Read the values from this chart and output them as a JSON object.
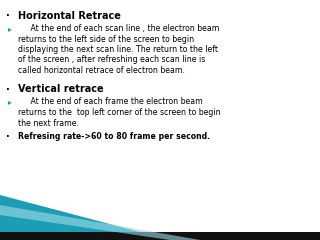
{
  "bg_color": "#ffffff",
  "text_color": "#000000",
  "sections": [
    {
      "title": "Horizontal Retrace",
      "body_lines": [
        "     At the end of each scan line , the electron beam",
        "returns to the left side of the screen to begin",
        "displaying the next scan line. The return to the left",
        "of the screen , after refreshing each scan line is",
        "called horizontal retrace of electron beam."
      ]
    },
    {
      "title": "Vertical retrace",
      "body_lines": [
        "     At the end of each frame the electron beam",
        "returns to the  top left corner of the screen to begin",
        "the next frame."
      ],
      "extra_lines": [
        "Refresing rate->60 to 80 frame per second."
      ]
    }
  ],
  "title_fontsize": 7.0,
  "body_fontsize": 5.6,
  "teal_color": "#1a9db5",
  "black_color": "#111111",
  "bullet_large": "·",
  "bullet_small": "▸"
}
